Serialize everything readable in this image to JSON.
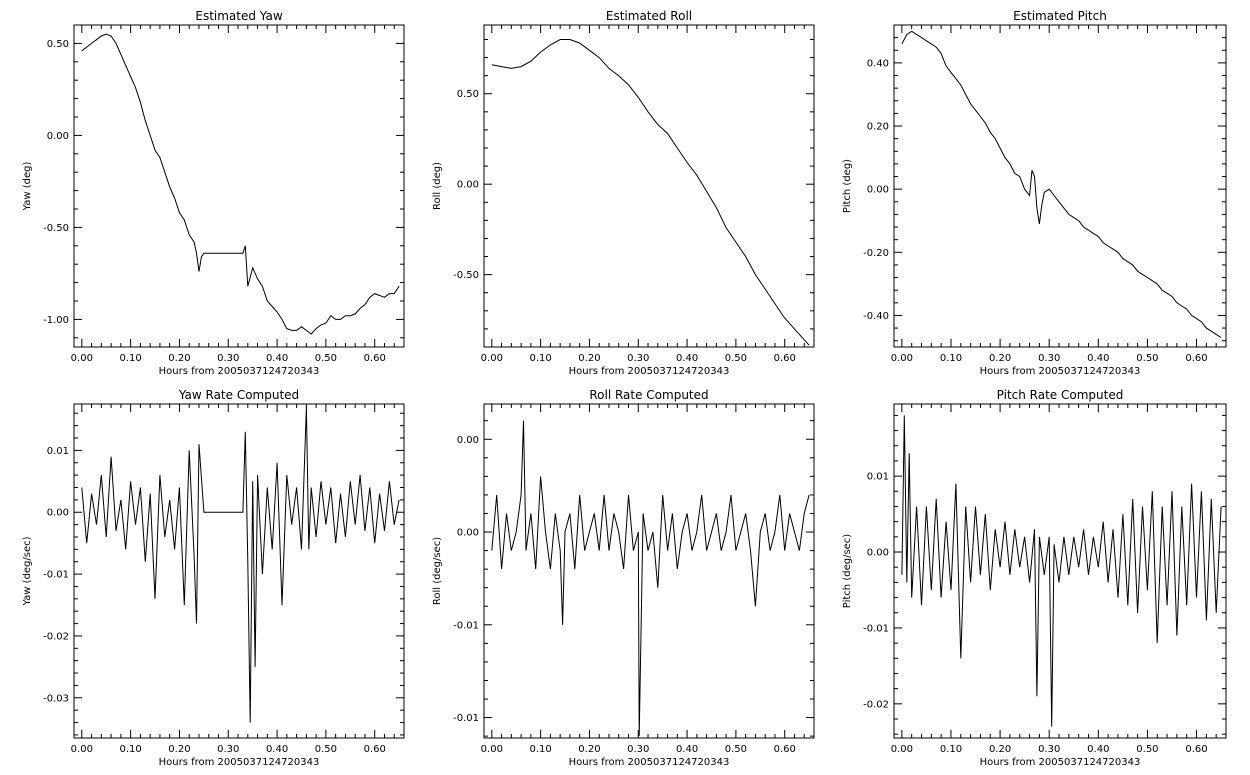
{
  "chart_data": [
    {
      "type": "line",
      "title": "Estimated Yaw",
      "xlabel": "Hours from 2005037124720343",
      "ylabel": "Yaw (deg)",
      "xlim": [
        -0.016,
        0.66
      ],
      "ylim": [
        -1.15,
        0.6
      ],
      "xticks": [
        0.0,
        0.1,
        0.2,
        0.3,
        0.4,
        0.5,
        0.6
      ],
      "xtick_labels": [
        "0.00",
        "0.10",
        "0.20",
        "0.30",
        "0.40",
        "0.50",
        "0.60"
      ],
      "yticks": [
        0.5,
        0.0,
        -0.5,
        -1.0
      ],
      "ytick_labels": [
        "0.50",
        "0.00",
        "-0.50",
        "-1.00"
      ],
      "series": [
        {
          "x": [
            0.0,
            0.01,
            0.02,
            0.03,
            0.04,
            0.05,
            0.06,
            0.07,
            0.08,
            0.09,
            0.1,
            0.11,
            0.12,
            0.13,
            0.14,
            0.15,
            0.16,
            0.17,
            0.18,
            0.19,
            0.2,
            0.21,
            0.22,
            0.23,
            0.235,
            0.24,
            0.245,
            0.25,
            0.26,
            0.27,
            0.28,
            0.29,
            0.3,
            0.31,
            0.32,
            0.33,
            0.335,
            0.34,
            0.35,
            0.36,
            0.37,
            0.38,
            0.39,
            0.4,
            0.41,
            0.42,
            0.43,
            0.44,
            0.45,
            0.46,
            0.47,
            0.48,
            0.49,
            0.5,
            0.51,
            0.52,
            0.53,
            0.54,
            0.55,
            0.56,
            0.57,
            0.58,
            0.59,
            0.6,
            0.61,
            0.62,
            0.63,
            0.64,
            0.65
          ],
          "values": [
            0.46,
            0.48,
            0.5,
            0.52,
            0.54,
            0.55,
            0.54,
            0.5,
            0.44,
            0.38,
            0.32,
            0.26,
            0.18,
            0.08,
            0.0,
            -0.08,
            -0.12,
            -0.2,
            -0.28,
            -0.34,
            -0.42,
            -0.46,
            -0.54,
            -0.58,
            -0.64,
            -0.74,
            -0.66,
            -0.64,
            -0.64,
            -0.64,
            -0.64,
            -0.64,
            -0.64,
            -0.64,
            -0.64,
            -0.64,
            -0.6,
            -0.82,
            -0.72,
            -0.78,
            -0.82,
            -0.9,
            -0.93,
            -0.96,
            -1.0,
            -1.05,
            -1.06,
            -1.06,
            -1.04,
            -1.06,
            -1.08,
            -1.05,
            -1.03,
            -1.02,
            -0.98,
            -1.0,
            -1.0,
            -0.98,
            -0.98,
            -0.97,
            -0.94,
            -0.92,
            -0.88,
            -0.86,
            -0.87,
            -0.88,
            -0.86,
            -0.86,
            -0.82
          ]
        }
      ]
    },
    {
      "type": "line",
      "title": "Estimated Roll",
      "xlabel": "Hours from 2005037124720343",
      "ylabel": "Roll (deg)",
      "xlim": [
        -0.016,
        0.66
      ],
      "ylim": [
        -0.9,
        0.88
      ],
      "xticks": [
        0.0,
        0.1,
        0.2,
        0.3,
        0.4,
        0.5,
        0.6
      ],
      "xtick_labels": [
        "0.00",
        "0.10",
        "0.20",
        "0.30",
        "0.40",
        "0.50",
        "0.60"
      ],
      "yticks": [
        0.5,
        0.0,
        -0.5
      ],
      "ytick_labels": [
        "0.50",
        "0.00",
        "-0.50"
      ],
      "series": [
        {
          "x": [
            0.0,
            0.02,
            0.04,
            0.06,
            0.08,
            0.1,
            0.12,
            0.14,
            0.16,
            0.18,
            0.2,
            0.22,
            0.24,
            0.26,
            0.28,
            0.3,
            0.32,
            0.34,
            0.36,
            0.38,
            0.4,
            0.42,
            0.44,
            0.46,
            0.48,
            0.5,
            0.52,
            0.54,
            0.56,
            0.58,
            0.6,
            0.62,
            0.64,
            0.65
          ],
          "values": [
            0.66,
            0.65,
            0.64,
            0.65,
            0.68,
            0.73,
            0.77,
            0.8,
            0.8,
            0.78,
            0.74,
            0.7,
            0.64,
            0.6,
            0.55,
            0.48,
            0.4,
            0.33,
            0.28,
            0.2,
            0.12,
            0.05,
            -0.04,
            -0.13,
            -0.24,
            -0.32,
            -0.4,
            -0.5,
            -0.58,
            -0.66,
            -0.74,
            -0.8,
            -0.86,
            -0.89
          ]
        }
      ]
    },
    {
      "type": "line",
      "title": "Estimated Pitch",
      "xlabel": "Hours from 2005037124720343",
      "ylabel": "Pitch (deg)",
      "xlim": [
        -0.016,
        0.66
      ],
      "ylim": [
        -0.5,
        0.52
      ],
      "xticks": [
        0.0,
        0.1,
        0.2,
        0.3,
        0.4,
        0.5,
        0.6
      ],
      "xtick_labels": [
        "0.00",
        "0.10",
        "0.20",
        "0.30",
        "0.40",
        "0.50",
        "0.60"
      ],
      "yticks": [
        0.4,
        0.2,
        0.0,
        -0.2,
        -0.4
      ],
      "ytick_labels": [
        "0.40",
        "0.20",
        "0.00",
        "-0.20",
        "-0.40"
      ],
      "series": [
        {
          "x": [
            0.0,
            0.01,
            0.02,
            0.03,
            0.04,
            0.05,
            0.06,
            0.07,
            0.08,
            0.09,
            0.1,
            0.11,
            0.12,
            0.13,
            0.14,
            0.15,
            0.16,
            0.17,
            0.18,
            0.19,
            0.2,
            0.21,
            0.22,
            0.23,
            0.24,
            0.25,
            0.26,
            0.265,
            0.27,
            0.275,
            0.28,
            0.285,
            0.29,
            0.3,
            0.31,
            0.32,
            0.33,
            0.34,
            0.35,
            0.36,
            0.37,
            0.38,
            0.39,
            0.4,
            0.41,
            0.42,
            0.43,
            0.44,
            0.45,
            0.46,
            0.47,
            0.48,
            0.49,
            0.5,
            0.51,
            0.52,
            0.53,
            0.54,
            0.55,
            0.56,
            0.57,
            0.58,
            0.59,
            0.6,
            0.61,
            0.62,
            0.63,
            0.64,
            0.65
          ],
          "values": [
            0.46,
            0.49,
            0.5,
            0.49,
            0.48,
            0.47,
            0.46,
            0.45,
            0.43,
            0.39,
            0.37,
            0.35,
            0.33,
            0.3,
            0.27,
            0.25,
            0.23,
            0.21,
            0.18,
            0.16,
            0.13,
            0.1,
            0.08,
            0.05,
            0.04,
            0.0,
            -0.02,
            0.06,
            0.04,
            -0.06,
            -0.11,
            -0.05,
            -0.01,
            0.0,
            -0.02,
            -0.04,
            -0.06,
            -0.08,
            -0.09,
            -0.1,
            -0.12,
            -0.13,
            -0.14,
            -0.15,
            -0.17,
            -0.18,
            -0.19,
            -0.2,
            -0.22,
            -0.23,
            -0.24,
            -0.26,
            -0.27,
            -0.28,
            -0.29,
            -0.3,
            -0.32,
            -0.33,
            -0.34,
            -0.36,
            -0.37,
            -0.38,
            -0.4,
            -0.41,
            -0.42,
            -0.44,
            -0.45,
            -0.46,
            -0.47
          ]
        }
      ]
    },
    {
      "type": "line",
      "title": "Yaw Rate Computed",
      "xlabel": "Hours from 2005037124720343",
      "ylabel": "Yaw (deg/sec)",
      "xlim": [
        -0.016,
        0.66
      ],
      "ylim": [
        -0.0365,
        0.0175
      ],
      "xticks": [
        0.0,
        0.1,
        0.2,
        0.3,
        0.4,
        0.5,
        0.6
      ],
      "xtick_labels": [
        "0.00",
        "0.10",
        "0.20",
        "0.30",
        "0.40",
        "0.50",
        "0.60"
      ],
      "yticks": [
        0.01,
        0.0,
        -0.01,
        -0.02,
        -0.03
      ],
      "ytick_labels": [
        "0.01",
        "0.00",
        "-0.01",
        "-0.02",
        "-0.03"
      ],
      "series": [
        {
          "x": [
            0.0,
            0.01,
            0.02,
            0.03,
            0.04,
            0.05,
            0.06,
            0.07,
            0.08,
            0.09,
            0.1,
            0.11,
            0.12,
            0.13,
            0.14,
            0.15,
            0.16,
            0.17,
            0.18,
            0.19,
            0.2,
            0.21,
            0.22,
            0.23,
            0.235,
            0.24,
            0.25,
            0.3,
            0.33,
            0.335,
            0.34,
            0.345,
            0.35,
            0.355,
            0.36,
            0.37,
            0.38,
            0.39,
            0.4,
            0.41,
            0.42,
            0.43,
            0.44,
            0.45,
            0.46,
            0.465,
            0.47,
            0.48,
            0.49,
            0.5,
            0.51,
            0.52,
            0.53,
            0.54,
            0.55,
            0.56,
            0.57,
            0.58,
            0.59,
            0.6,
            0.61,
            0.62,
            0.63,
            0.64,
            0.65
          ],
          "values": [
            0.004,
            -0.005,
            0.003,
            -0.002,
            0.006,
            -0.004,
            0.009,
            -0.003,
            0.002,
            -0.006,
            0.005,
            -0.002,
            0.004,
            -0.008,
            0.003,
            -0.014,
            0.006,
            -0.004,
            0.002,
            -0.006,
            0.004,
            -0.015,
            0.01,
            -0.007,
            -0.018,
            0.011,
            0.0,
            0.0,
            0.0,
            0.013,
            -0.008,
            -0.034,
            0.005,
            -0.025,
            0.006,
            -0.01,
            0.004,
            -0.006,
            0.008,
            -0.015,
            0.006,
            -0.002,
            0.004,
            -0.006,
            0.017,
            -0.006,
            0.004,
            -0.004,
            0.005,
            -0.002,
            0.004,
            -0.005,
            0.003,
            -0.004,
            0.005,
            -0.002,
            0.006,
            -0.003,
            0.004,
            -0.005,
            0.003,
            -0.003,
            0.005,
            -0.002,
            0.002
          ]
        }
      ]
    },
    {
      "type": "line",
      "title": "Roll Rate Computed",
      "xlabel": "Hours from 2005037124720343",
      "ylabel": "Roll (deg/sec)",
      "xlim": [
        -0.016,
        0.66
      ],
      "ylim": [
        -0.0161,
        0.0019
      ],
      "xticks": [
        0.0,
        0.1,
        0.2,
        0.3,
        0.4,
        0.5,
        0.6
      ],
      "xtick_labels": [
        "0.00",
        "0.10",
        "0.20",
        "0.30",
        "0.40",
        "0.50",
        "0.60"
      ],
      "yticks": [
        0.0,
        -0.005,
        -0.01,
        -0.015
      ],
      "ytick_labels": [
        "0.00",
        "0.00",
        "-0.01",
        "-0.01"
      ],
      "series": [
        {
          "x": [
            0.0,
            0.01,
            0.02,
            0.03,
            0.04,
            0.05,
            0.06,
            0.065,
            0.07,
            0.08,
            0.09,
            0.1,
            0.11,
            0.12,
            0.13,
            0.14,
            0.145,
            0.15,
            0.16,
            0.17,
            0.18,
            0.19,
            0.2,
            0.21,
            0.22,
            0.23,
            0.24,
            0.25,
            0.26,
            0.27,
            0.28,
            0.29,
            0.3,
            0.302,
            0.31,
            0.32,
            0.33,
            0.34,
            0.35,
            0.36,
            0.37,
            0.38,
            0.39,
            0.4,
            0.41,
            0.42,
            0.43,
            0.44,
            0.45,
            0.46,
            0.47,
            0.48,
            0.49,
            0.5,
            0.51,
            0.52,
            0.53,
            0.54,
            0.55,
            0.56,
            0.57,
            0.58,
            0.59,
            0.6,
            0.61,
            0.62,
            0.63,
            0.64,
            0.65
          ],
          "values": [
            -0.006,
            -0.003,
            -0.007,
            -0.004,
            -0.006,
            -0.005,
            -0.003,
            0.001,
            -0.006,
            -0.004,
            -0.007,
            -0.002,
            -0.005,
            -0.007,
            -0.004,
            -0.006,
            -0.01,
            -0.005,
            -0.004,
            -0.007,
            -0.003,
            -0.006,
            -0.005,
            -0.004,
            -0.006,
            -0.003,
            -0.006,
            -0.004,
            -0.005,
            -0.007,
            -0.003,
            -0.006,
            -0.005,
            -0.016,
            -0.004,
            -0.006,
            -0.005,
            -0.008,
            -0.003,
            -0.006,
            -0.004,
            -0.007,
            -0.005,
            -0.004,
            -0.006,
            -0.005,
            -0.003,
            -0.006,
            -0.005,
            -0.004,
            -0.006,
            -0.005,
            -0.003,
            -0.006,
            -0.005,
            -0.004,
            -0.006,
            -0.009,
            -0.005,
            -0.004,
            -0.006,
            -0.005,
            -0.003,
            -0.006,
            -0.004,
            -0.005,
            -0.006,
            -0.004,
            -0.003
          ]
        }
      ]
    },
    {
      "type": "line",
      "title": "Pitch Rate Computed",
      "xlabel": "Hours from 2005037124720343",
      "ylabel": "Pitch (deg/sec)",
      "xlim": [
        -0.016,
        0.66
      ],
      "ylim": [
        -0.0245,
        0.0195
      ],
      "xticks": [
        0.0,
        0.1,
        0.2,
        0.3,
        0.4,
        0.5,
        0.6
      ],
      "xtick_labels": [
        "0.00",
        "0.10",
        "0.20",
        "0.30",
        "0.40",
        "0.50",
        "0.60"
      ],
      "yticks": [
        0.01,
        0.0,
        -0.01,
        -0.02
      ],
      "ytick_labels": [
        "0.01",
        "0.00",
        "-0.01",
        "-0.02"
      ],
      "series": [
        {
          "x": [
            0.0,
            0.005,
            0.01,
            0.015,
            0.02,
            0.03,
            0.04,
            0.05,
            0.06,
            0.07,
            0.08,
            0.09,
            0.1,
            0.11,
            0.12,
            0.13,
            0.14,
            0.15,
            0.16,
            0.17,
            0.18,
            0.19,
            0.2,
            0.21,
            0.22,
            0.23,
            0.24,
            0.25,
            0.26,
            0.27,
            0.275,
            0.28,
            0.29,
            0.3,
            0.305,
            0.31,
            0.32,
            0.33,
            0.34,
            0.35,
            0.36,
            0.37,
            0.38,
            0.39,
            0.4,
            0.41,
            0.42,
            0.43,
            0.44,
            0.45,
            0.46,
            0.47,
            0.48,
            0.49,
            0.5,
            0.51,
            0.52,
            0.53,
            0.54,
            0.55,
            0.56,
            0.57,
            0.58,
            0.59,
            0.6,
            0.61,
            0.62,
            0.63,
            0.64,
            0.65
          ],
          "values": [
            -0.003,
            0.018,
            -0.004,
            0.013,
            -0.006,
            0.006,
            -0.007,
            0.006,
            -0.005,
            0.007,
            -0.006,
            0.004,
            -0.005,
            0.009,
            -0.014,
            0.006,
            -0.004,
            0.006,
            -0.003,
            0.005,
            -0.005,
            0.003,
            -0.002,
            0.004,
            -0.003,
            0.003,
            -0.002,
            0.002,
            -0.004,
            0.003,
            -0.019,
            0.002,
            -0.003,
            0.002,
            -0.023,
            0.001,
            -0.004,
            0.002,
            -0.003,
            0.002,
            -0.002,
            0.003,
            -0.003,
            0.002,
            -0.002,
            0.004,
            -0.004,
            0.003,
            -0.006,
            0.005,
            -0.007,
            0.007,
            -0.008,
            0.006,
            -0.005,
            0.008,
            -0.012,
            0.006,
            -0.007,
            0.008,
            -0.011,
            0.006,
            -0.007,
            0.009,
            -0.006,
            0.008,
            -0.009,
            0.007,
            -0.008,
            0.006
          ]
        }
      ]
    }
  ]
}
